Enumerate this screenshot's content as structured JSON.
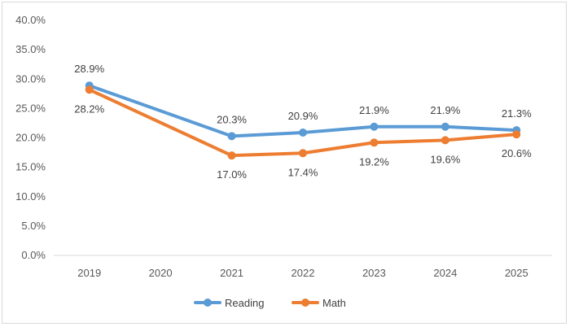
{
  "chart_data": {
    "type": "line",
    "title": "",
    "xlabel": "",
    "ylabel": "",
    "categories": [
      "2019",
      "2020",
      "2021",
      "2022",
      "2023",
      "2024",
      "2025"
    ],
    "ylim": [
      0,
      40
    ],
    "y_ticks": [
      "0.0%",
      "5.0%",
      "10.0%",
      "15.0%",
      "20.0%",
      "25.0%",
      "30.0%",
      "35.0%",
      "40.0%"
    ],
    "y_tick_values": [
      0,
      5,
      10,
      15,
      20,
      25,
      30,
      35,
      40
    ],
    "grid": false,
    "legend_position": "bottom",
    "series": [
      {
        "name": "Reading",
        "color": "#5b9bd5",
        "values": [
          28.9,
          null,
          20.3,
          20.9,
          21.9,
          21.9,
          21.3
        ],
        "labels": [
          "28.9%",
          null,
          "20.3%",
          "20.9%",
          "21.9%",
          "21.9%",
          "21.3%"
        ],
        "label_side": "above"
      },
      {
        "name": "Math",
        "color": "#ed7d31",
        "values": [
          28.2,
          null,
          17.0,
          17.4,
          19.2,
          19.6,
          20.6
        ],
        "labels": [
          "28.2%",
          null,
          "17.0%",
          "17.4%",
          "19.2%",
          "19.6%",
          "20.6%"
        ],
        "label_side": "below"
      }
    ]
  }
}
